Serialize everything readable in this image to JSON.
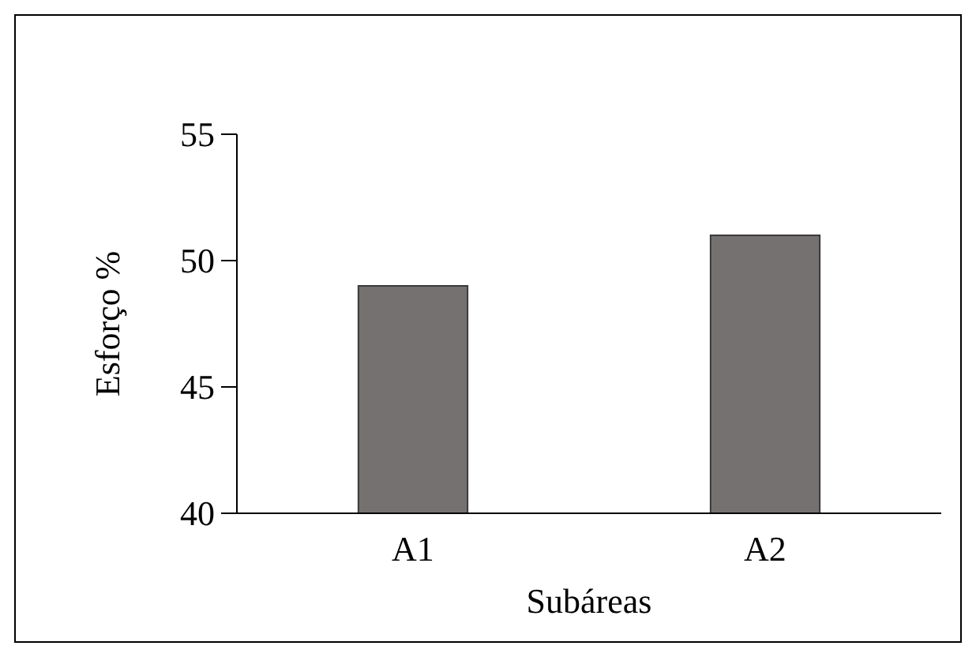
{
  "chart_data": {
    "type": "bar",
    "xlabel": "Subáreas",
    "ylabel": "Esforço %",
    "categories": [
      "A1",
      "A2"
    ],
    "values": [
      49,
      51
    ],
    "color": "#767171",
    "ylim": [
      40,
      55
    ],
    "yticks": [
      40,
      45,
      50,
      55
    ],
    "grid": false
  }
}
